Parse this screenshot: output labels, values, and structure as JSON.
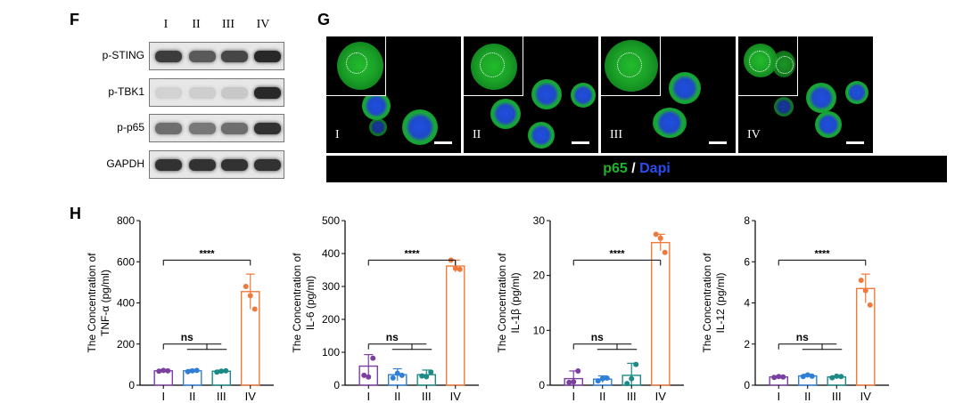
{
  "panels": {
    "F": "F",
    "G": "G",
    "H": "H"
  },
  "lanes": [
    "I",
    "II",
    "III",
    "IV"
  ],
  "western_blot": {
    "rows": [
      {
        "label": "p-STING",
        "intensities": [
          0.85,
          0.7,
          0.8,
          0.95
        ]
      },
      {
        "label": "p-TBK1",
        "intensities": [
          0.1,
          0.12,
          0.15,
          0.95
        ]
      },
      {
        "label": "p-p65",
        "intensities": [
          0.6,
          0.55,
          0.6,
          0.9
        ]
      },
      {
        "label": "GAPDH",
        "intensities": [
          0.9,
          0.9,
          0.9,
          0.9
        ]
      }
    ]
  },
  "microscopy": {
    "caption_p65": "p65",
    "caption_sep": " / ",
    "caption_dapi": "Dapi",
    "colors": {
      "p65": "#1fb32a",
      "dapi": "#2b4cf0"
    }
  },
  "chart_data": [
    {
      "type": "bar",
      "categories": [
        "I",
        "II",
        "III",
        "IV"
      ],
      "values": [
        70,
        70,
        68,
        455
      ],
      "errors": [
        6,
        6,
        5,
        85
      ],
      "points": [
        [
          68,
          72,
          70
        ],
        [
          66,
          70,
          72
        ],
        [
          64,
          68,
          70
        ],
        [
          480,
          435,
          370
        ]
      ],
      "ylabel_line1": "The Concentration of",
      "ylabel_line2": "TNF-α (pg/ml)",
      "ylim": [
        0,
        800
      ],
      "yticks": [
        0,
        200,
        400,
        600,
        800
      ],
      "sig_ns": "ns",
      "sig_star": "****",
      "colors": [
        "#7b3fa0",
        "#2f7fd6",
        "#1c8a86",
        "#f07a3a"
      ]
    },
    {
      "type": "bar",
      "categories": [
        "I",
        "II",
        "III",
        "IV"
      ],
      "values": [
        58,
        32,
        32,
        362
      ],
      "errors": [
        35,
        18,
        14,
        18
      ],
      "points": [
        [
          30,
          25,
          82
        ],
        [
          22,
          36,
          30
        ],
        [
          28,
          26,
          40
        ],
        [
          380,
          355,
          352
        ]
      ],
      "ylabel_line1": "The Concentration of",
      "ylabel_line2": "IL-6 (pg/ml)",
      "ylim": [
        0,
        500
      ],
      "yticks": [
        0,
        100,
        200,
        300,
        400,
        500
      ],
      "sig_ns": "ns",
      "sig_star": "****",
      "colors": [
        "#7b3fa0",
        "#2f7fd6",
        "#1c8a86",
        "#f07a3a"
      ]
    },
    {
      "type": "bar",
      "categories": [
        "I",
        "II",
        "III",
        "IV"
      ],
      "values": [
        1.2,
        1.1,
        1.8,
        26
      ],
      "errors": [
        1.4,
        0.6,
        2.2,
        1.5
      ],
      "points": [
        [
          0.5,
          0.6,
          2.6
        ],
        [
          0.8,
          1.2,
          1.3
        ],
        [
          0.3,
          1.2,
          3.8
        ],
        [
          27.5,
          26.8,
          24.2
        ]
      ],
      "ylabel_line1": "The Concentration of",
      "ylabel_line2": "IL-1β (pg/ml)",
      "ylim": [
        0,
        30
      ],
      "yticks": [
        0,
        10,
        20,
        30
      ],
      "sig_ns": "ns",
      "sig_star": "****",
      "colors": [
        "#7b3fa0",
        "#2f7fd6",
        "#1c8a86",
        "#f07a3a"
      ]
    },
    {
      "type": "bar",
      "categories": [
        "I",
        "II",
        "III",
        "IV"
      ],
      "values": [
        0.4,
        0.45,
        0.4,
        4.7
      ],
      "errors": [
        0.05,
        0.08,
        0.05,
        0.7
      ],
      "points": [
        [
          0.38,
          0.42,
          0.4
        ],
        [
          0.42,
          0.5,
          0.44
        ],
        [
          0.36,
          0.44,
          0.42
        ],
        [
          5.1,
          4.6,
          3.9
        ]
      ],
      "ylabel_line1": "The Concentration of",
      "ylabel_line2": "IL-12 (pg/ml)",
      "ylim": [
        0,
        8
      ],
      "yticks": [
        0,
        2,
        4,
        6,
        8
      ],
      "sig_ns": "ns",
      "sig_star": "****",
      "colors": [
        "#7b3fa0",
        "#2f7fd6",
        "#1c8a86",
        "#f07a3a"
      ]
    }
  ]
}
